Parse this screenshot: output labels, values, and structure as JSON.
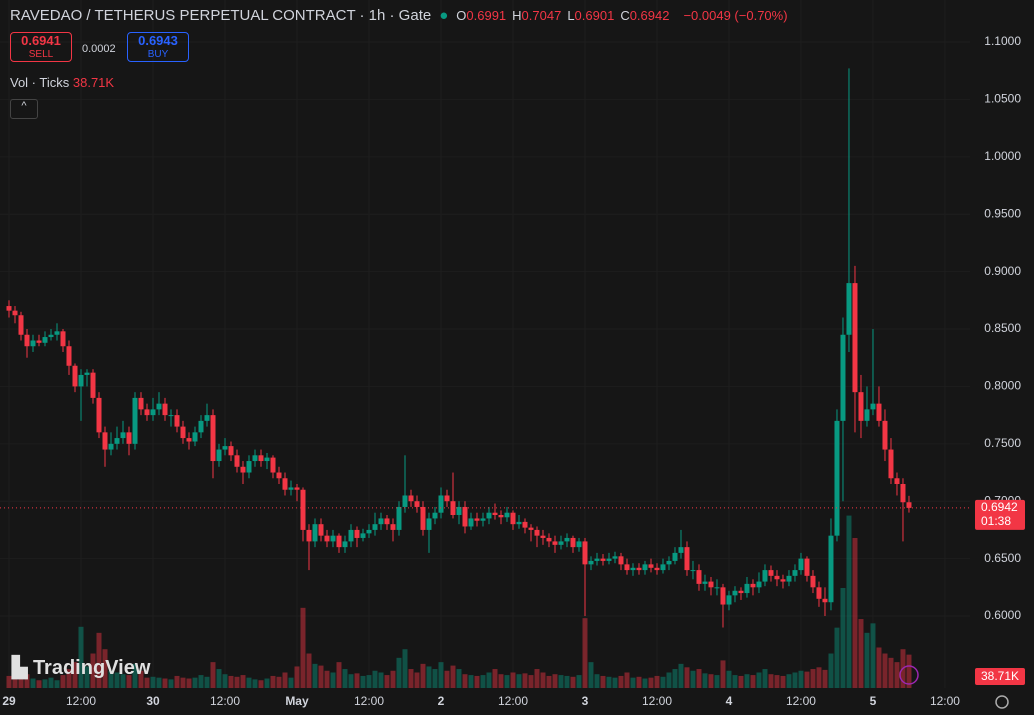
{
  "header": {
    "title": "RAVEDAO / TETHERUS PERPETUAL CONTRACT · 1h · Gate",
    "legend": [
      {
        "label": "O",
        "value": 0.6991
      },
      {
        "label": "H",
        "value": 0.7047
      },
      {
        "label": "L",
        "value": 0.6901
      },
      {
        "label": "C",
        "value": 0.6942
      }
    ],
    "change_label": "−0.0049 (−0.70%)"
  },
  "trade": {
    "sell_price": 0.6941,
    "sell_label": "SELL",
    "spread": 0.0002,
    "buy_price": 0.6943,
    "buy_label": "BUY"
  },
  "volume_indicator": {
    "label": "Vol · Ticks",
    "value": 38710,
    "value_label": "38.71K"
  },
  "logo": "TradingView",
  "chart_data": {
    "type": "candlestick",
    "up_color": "#089981",
    "down_color": "#f23645",
    "grid": true,
    "ylim": [
      0.5373,
      1.1366
    ],
    "yticks": [
      {
        "value": 0.6,
        "label": "0.6000"
      },
      {
        "value": 0.65,
        "label": "0.6500"
      },
      {
        "value": 0.7,
        "label": "0.7000"
      },
      {
        "value": 0.75,
        "label": "0.7500"
      },
      {
        "value": 0.8,
        "label": "0.8000"
      },
      {
        "value": 0.85,
        "label": "0.8500"
      },
      {
        "value": 0.9,
        "label": "0.9000"
      },
      {
        "value": 0.95,
        "label": "0.9500"
      },
      {
        "value": 1,
        "label": "1.0000"
      },
      {
        "value": 1.05,
        "label": "1.0500"
      },
      {
        "value": 1.1,
        "label": "1.1000"
      }
    ],
    "xlim": [
      -1.5,
      160.17
    ],
    "xticks": [
      {
        "value": 0,
        "label": "29"
      },
      {
        "value": 12,
        "label": "12:00"
      },
      {
        "value": 24,
        "label": "30"
      },
      {
        "value": 36,
        "label": "12:00"
      },
      {
        "value": 48,
        "label": "May"
      },
      {
        "value": 60,
        "label": "12:00"
      },
      {
        "value": 72,
        "label": "2"
      },
      {
        "value": 84,
        "label": "12:00"
      },
      {
        "value": 96,
        "label": "3"
      },
      {
        "value": 108,
        "label": "12:00"
      },
      {
        "value": 120,
        "label": "4"
      },
      {
        "value": 132,
        "label": "12:00"
      },
      {
        "value": 144,
        "label": "5"
      },
      {
        "value": 156,
        "label": "12:00"
      }
    ],
    "last_price": 0.6942,
    "countdown": "01:38",
    "ohlc": [
      [
        0.87,
        0.875,
        0.86,
        0.866
      ],
      [
        0.866,
        0.87,
        0.855,
        0.862
      ],
      [
        0.862,
        0.865,
        0.84,
        0.845
      ],
      [
        0.845,
        0.85,
        0.825,
        0.835
      ],
      [
        0.835,
        0.845,
        0.83,
        0.84
      ],
      [
        0.84,
        0.845,
        0.835,
        0.838
      ],
      [
        0.838,
        0.848,
        0.835,
        0.843
      ],
      [
        0.843,
        0.85,
        0.84,
        0.845
      ],
      [
        0.845,
        0.855,
        0.84,
        0.848
      ],
      [
        0.848,
        0.85,
        0.83,
        0.835
      ],
      [
        0.835,
        0.84,
        0.81,
        0.818
      ],
      [
        0.818,
        0.82,
        0.795,
        0.8
      ],
      [
        0.8,
        0.815,
        0.77,
        0.81
      ],
      [
        0.81,
        0.815,
        0.8,
        0.812
      ],
      [
        0.812,
        0.815,
        0.785,
        0.79
      ],
      [
        0.79,
        0.795,
        0.755,
        0.76
      ],
      [
        0.76,
        0.765,
        0.73,
        0.745
      ],
      [
        0.745,
        0.76,
        0.74,
        0.75
      ],
      [
        0.75,
        0.765,
        0.745,
        0.755
      ],
      [
        0.755,
        0.77,
        0.75,
        0.76
      ],
      [
        0.76,
        0.765,
        0.74,
        0.75
      ],
      [
        0.75,
        0.795,
        0.745,
        0.79
      ],
      [
        0.79,
        0.795,
        0.775,
        0.78
      ],
      [
        0.78,
        0.785,
        0.77,
        0.775
      ],
      [
        0.775,
        0.79,
        0.77,
        0.78
      ],
      [
        0.78,
        0.795,
        0.775,
        0.785
      ],
      [
        0.785,
        0.79,
        0.77,
        0.775
      ],
      [
        0.775,
        0.78,
        0.765,
        0.775
      ],
      [
        0.775,
        0.78,
        0.76,
        0.765
      ],
      [
        0.765,
        0.77,
        0.75,
        0.755
      ],
      [
        0.755,
        0.76,
        0.745,
        0.752
      ],
      [
        0.752,
        0.765,
        0.748,
        0.76
      ],
      [
        0.76,
        0.775,
        0.755,
        0.77
      ],
      [
        0.77,
        0.785,
        0.765,
        0.775
      ],
      [
        0.775,
        0.78,
        0.72,
        0.735
      ],
      [
        0.735,
        0.75,
        0.73,
        0.745
      ],
      [
        0.745,
        0.755,
        0.74,
        0.748
      ],
      [
        0.748,
        0.752,
        0.735,
        0.74
      ],
      [
        0.74,
        0.745,
        0.725,
        0.73
      ],
      [
        0.73,
        0.735,
        0.715,
        0.725
      ],
      [
        0.725,
        0.74,
        0.72,
        0.735
      ],
      [
        0.735,
        0.745,
        0.73,
        0.74
      ],
      [
        0.74,
        0.745,
        0.73,
        0.735
      ],
      [
        0.735,
        0.742,
        0.728,
        0.738
      ],
      [
        0.738,
        0.74,
        0.72,
        0.725
      ],
      [
        0.725,
        0.73,
        0.715,
        0.72
      ],
      [
        0.72,
        0.725,
        0.705,
        0.71
      ],
      [
        0.71,
        0.718,
        0.705,
        0.712
      ],
      [
        0.712,
        0.715,
        0.7,
        0.71
      ],
      [
        0.71,
        0.712,
        0.665,
        0.675
      ],
      [
        0.675,
        0.68,
        0.64,
        0.665
      ],
      [
        0.665,
        0.685,
        0.66,
        0.68
      ],
      [
        0.68,
        0.685,
        0.665,
        0.67
      ],
      [
        0.67,
        0.675,
        0.66,
        0.665
      ],
      [
        0.665,
        0.675,
        0.66,
        0.67
      ],
      [
        0.67,
        0.672,
        0.655,
        0.66
      ],
      [
        0.66,
        0.67,
        0.655,
        0.665
      ],
      [
        0.665,
        0.68,
        0.66,
        0.675
      ],
      [
        0.675,
        0.678,
        0.66,
        0.668
      ],
      [
        0.668,
        0.676,
        0.665,
        0.672
      ],
      [
        0.672,
        0.68,
        0.668,
        0.675
      ],
      [
        0.675,
        0.69,
        0.67,
        0.68
      ],
      [
        0.68,
        0.69,
        0.675,
        0.685
      ],
      [
        0.685,
        0.688,
        0.675,
        0.68
      ],
      [
        0.68,
        0.685,
        0.665,
        0.675
      ],
      [
        0.675,
        0.7,
        0.67,
        0.695
      ],
      [
        0.695,
        0.74,
        0.69,
        0.705
      ],
      [
        0.705,
        0.71,
        0.695,
        0.7
      ],
      [
        0.7,
        0.705,
        0.69,
        0.695
      ],
      [
        0.695,
        0.7,
        0.67,
        0.675
      ],
      [
        0.675,
        0.69,
        0.655,
        0.685
      ],
      [
        0.685,
        0.695,
        0.68,
        0.69
      ],
      [
        0.69,
        0.712,
        0.685,
        0.705
      ],
      [
        0.705,
        0.71,
        0.695,
        0.7
      ],
      [
        0.7,
        0.725,
        0.685,
        0.688
      ],
      [
        0.688,
        0.7,
        0.68,
        0.695
      ],
      [
        0.695,
        0.7,
        0.672,
        0.678
      ],
      [
        0.678,
        0.69,
        0.675,
        0.685
      ],
      [
        0.685,
        0.69,
        0.678,
        0.683
      ],
      [
        0.683,
        0.69,
        0.678,
        0.685
      ],
      [
        0.685,
        0.695,
        0.68,
        0.69
      ],
      [
        0.69,
        0.698,
        0.684,
        0.688
      ],
      [
        0.688,
        0.692,
        0.68,
        0.686
      ],
      [
        0.686,
        0.695,
        0.682,
        0.69
      ],
      [
        0.69,
        0.692,
        0.675,
        0.68
      ],
      [
        0.68,
        0.688,
        0.676,
        0.682
      ],
      [
        0.682,
        0.685,
        0.672,
        0.677
      ],
      [
        0.677,
        0.68,
        0.665,
        0.675
      ],
      [
        0.675,
        0.678,
        0.66,
        0.67
      ],
      [
        0.67,
        0.675,
        0.662,
        0.668
      ],
      [
        0.668,
        0.672,
        0.66,
        0.665
      ],
      [
        0.665,
        0.67,
        0.655,
        0.662
      ],
      [
        0.662,
        0.67,
        0.658,
        0.665
      ],
      [
        0.665,
        0.672,
        0.66,
        0.668
      ],
      [
        0.668,
        0.67,
        0.655,
        0.66
      ],
      [
        0.66,
        0.668,
        0.656,
        0.665
      ],
      [
        0.665,
        0.668,
        0.6,
        0.645
      ],
      [
        0.645,
        0.652,
        0.64,
        0.648
      ],
      [
        0.648,
        0.655,
        0.644,
        0.65
      ],
      [
        0.65,
        0.654,
        0.644,
        0.648
      ],
      [
        0.648,
        0.655,
        0.645,
        0.65
      ],
      [
        0.65,
        0.656,
        0.646,
        0.652
      ],
      [
        0.652,
        0.655,
        0.64,
        0.645
      ],
      [
        0.645,
        0.65,
        0.636,
        0.64
      ],
      [
        0.64,
        0.646,
        0.635,
        0.642
      ],
      [
        0.642,
        0.646,
        0.636,
        0.64
      ],
      [
        0.64,
        0.648,
        0.636,
        0.645
      ],
      [
        0.645,
        0.65,
        0.638,
        0.642
      ],
      [
        0.642,
        0.646,
        0.636,
        0.64
      ],
      [
        0.64,
        0.65,
        0.637,
        0.645
      ],
      [
        0.645,
        0.652,
        0.64,
        0.648
      ],
      [
        0.648,
        0.66,
        0.645,
        0.655
      ],
      [
        0.655,
        0.675,
        0.65,
        0.66
      ],
      [
        0.66,
        0.665,
        0.635,
        0.64
      ],
      [
        0.64,
        0.648,
        0.632,
        0.64
      ],
      [
        0.64,
        0.645,
        0.622,
        0.628
      ],
      [
        0.628,
        0.636,
        0.622,
        0.63
      ],
      [
        0.63,
        0.634,
        0.618,
        0.625
      ],
      [
        0.625,
        0.632,
        0.618,
        0.625
      ],
      [
        0.625,
        0.628,
        0.59,
        0.61
      ],
      [
        0.61,
        0.622,
        0.605,
        0.618
      ],
      [
        0.618,
        0.626,
        0.612,
        0.622
      ],
      [
        0.622,
        0.625,
        0.614,
        0.62
      ],
      [
        0.62,
        0.634,
        0.616,
        0.628
      ],
      [
        0.628,
        0.632,
        0.618,
        0.625
      ],
      [
        0.625,
        0.638,
        0.62,
        0.63
      ],
      [
        0.63,
        0.645,
        0.626,
        0.64
      ],
      [
        0.64,
        0.644,
        0.63,
        0.635
      ],
      [
        0.635,
        0.64,
        0.626,
        0.632
      ],
      [
        0.632,
        0.636,
        0.624,
        0.63
      ],
      [
        0.63,
        0.64,
        0.626,
        0.635
      ],
      [
        0.635,
        0.645,
        0.63,
        0.64
      ],
      [
        0.64,
        0.655,
        0.636,
        0.65
      ],
      [
        0.65,
        0.652,
        0.63,
        0.635
      ],
      [
        0.635,
        0.64,
        0.62,
        0.625
      ],
      [
        0.625,
        0.63,
        0.608,
        0.615
      ],
      [
        0.615,
        0.625,
        0.6,
        0.612
      ],
      [
        0.612,
        0.685,
        0.605,
        0.67
      ],
      [
        0.67,
        0.78,
        0.665,
        0.77
      ],
      [
        0.77,
        0.86,
        0.7,
        0.845
      ],
      [
        0.845,
        1.077,
        0.83,
        0.89
      ],
      [
        0.89,
        0.905,
        0.76,
        0.795
      ],
      [
        0.795,
        0.81,
        0.755,
        0.77
      ],
      [
        0.77,
        0.8,
        0.765,
        0.78
      ],
      [
        0.78,
        0.85,
        0.775,
        0.785
      ],
      [
        0.785,
        0.8,
        0.765,
        0.77
      ],
      [
        0.77,
        0.78,
        0.735,
        0.745
      ],
      [
        0.745,
        0.755,
        0.715,
        0.72
      ],
      [
        0.72,
        0.725,
        0.705,
        0.715
      ],
      [
        0.715,
        0.72,
        0.665,
        0.6991
      ],
      [
        0.6991,
        0.7047,
        0.6901,
        0.6942
      ]
    ],
    "volume": [
      14000,
      12000,
      18000,
      16000,
      11000,
      9000,
      10000,
      12000,
      9000,
      15000,
      22000,
      30000,
      71000,
      25000,
      40000,
      64000,
      45000,
      20000,
      18000,
      16000,
      15000,
      28000,
      20000,
      12000,
      13000,
      12000,
      11000,
      10000,
      14000,
      12000,
      11000,
      12000,
      15000,
      13000,
      30000,
      22000,
      16000,
      14000,
      13000,
      15000,
      12000,
      10000,
      9000,
      11000,
      14000,
      13000,
      18000,
      12000,
      25000,
      93000,
      40000,
      28000,
      26000,
      20000,
      18000,
      30000,
      22000,
      16000,
      17000,
      14000,
      15000,
      20000,
      18000,
      15000,
      20000,
      35000,
      45000,
      22000,
      18000,
      28000,
      25000,
      22000,
      30000,
      20000,
      26000,
      22000,
      16000,
      15000,
      14000,
      15000,
      18000,
      22000,
      16000,
      15000,
      18000,
      16000,
      17000,
      15000,
      22000,
      18000,
      14000,
      16000,
      15000,
      14000,
      13000,
      15000,
      81000,
      30000,
      16000,
      14000,
      13000,
      12000,
      14000,
      18000,
      12000,
      13000,
      11000,
      12000,
      14000,
      13000,
      18000,
      22000,
      28000,
      24000,
      20000,
      22000,
      17000,
      16000,
      15000,
      32000,
      20000,
      15000,
      14000,
      16000,
      15000,
      18000,
      22000,
      16000,
      15000,
      14000,
      16000,
      18000,
      20000,
      19000,
      22000,
      24000,
      21000,
      40000,
      70000,
      116000,
      200000,
      174000,
      80000,
      64000,
      75000,
      47000,
      40000,
      35000,
      30000,
      45000,
      38710
    ]
  }
}
